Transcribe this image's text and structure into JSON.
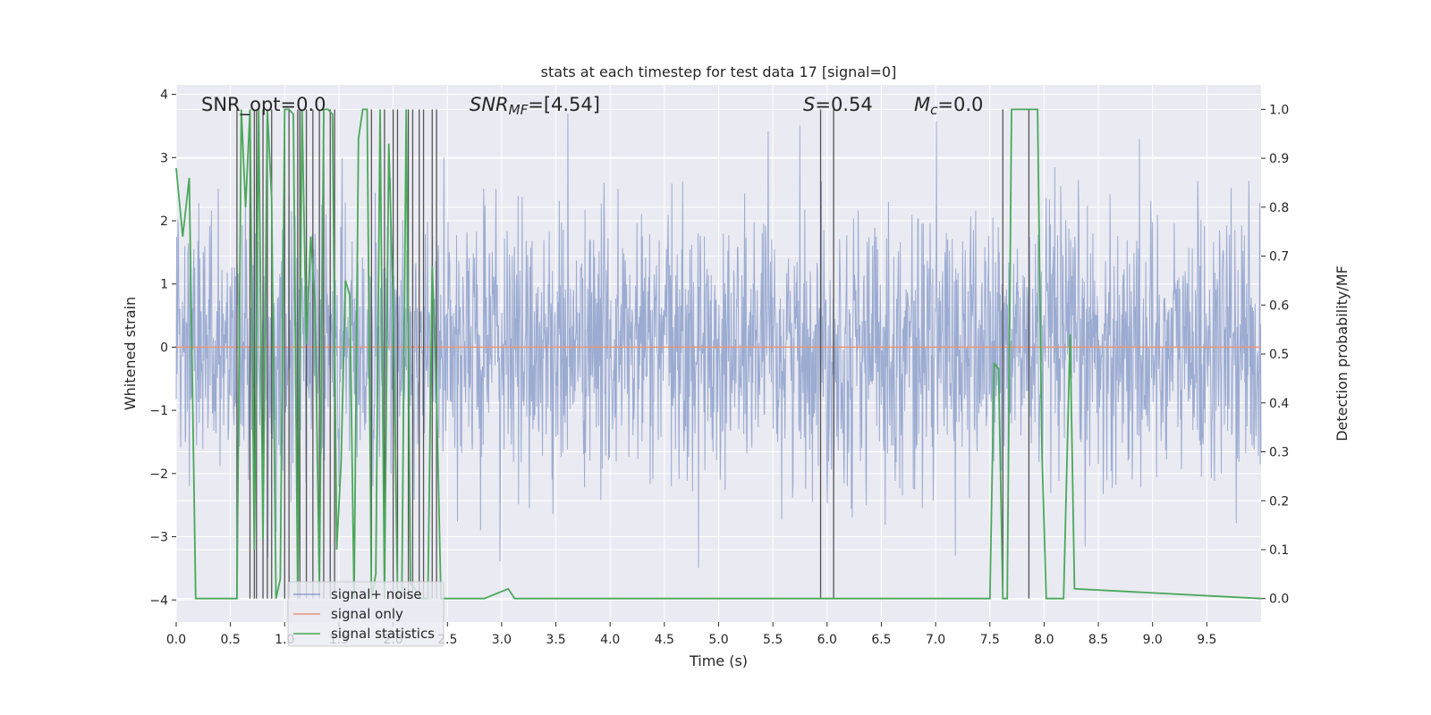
{
  "chart_data": {
    "type": "line",
    "title": "stats at each timestep for test data 17 [signal=0]",
    "xlabel": "Time (s)",
    "ylabel_left": "Whitened strain",
    "ylabel_right": "Detection probability/MF",
    "xlim": [
      0,
      10
    ],
    "ylim_left": [
      -4.35,
      4.15
    ],
    "ylim_right": [
      -0.048,
      1.05
    ],
    "x_ticks": [
      "0.0",
      "0.5",
      "1.0",
      "1.5",
      "2.0",
      "2.5",
      "3.0",
      "3.5",
      "4.0",
      "4.5",
      "5.0",
      "5.5",
      "6.0",
      "6.5",
      "7.0",
      "7.5",
      "8.0",
      "8.5",
      "9.0",
      "9.5"
    ],
    "y_ticks_left": [
      "−4",
      "−3",
      "−2",
      "−1",
      "0",
      "1",
      "2",
      "3",
      "4"
    ],
    "y_ticks_right": [
      "0.0",
      "0.1",
      "0.2",
      "0.3",
      "0.4",
      "0.5",
      "0.6",
      "0.7",
      "0.8",
      "0.9",
      "1.0"
    ],
    "grid": true,
    "legend_placement": "lower-left",
    "annotations": {
      "snr_opt": "SNR_opt=0.0",
      "snr_mf_main": "SNR",
      "snr_mf_sub": "MF",
      "snr_mf_rest": "=[4.54]",
      "s_main": "S",
      "s_rest": "=0.54",
      "mc_main": "M",
      "mc_sub": "c",
      "mc_rest": "=0.0"
    },
    "series": [
      {
        "name": "signal+ noise",
        "color": "#8da0cb",
        "axis": "left",
        "description_of_values": "whitened strain noise, values between about -3.7 and 3.7"
      },
      {
        "name": "signal only",
        "color": "#e89679",
        "axis": "left",
        "x": [
          0,
          10
        ],
        "y": [
          0,
          0
        ]
      },
      {
        "name": "signal statistics",
        "color": "#4aa85a",
        "axis": "right",
        "x": [
          0,
          0.06,
          0.12,
          0.18,
          0.56,
          0.6,
          0.64,
          0.68,
          0.72,
          0.76,
          0.8,
          0.84,
          0.88,
          0.92,
          0.96,
          1.0,
          1.04,
          1.08,
          1.12,
          1.16,
          1.2,
          1.24,
          1.28,
          1.32,
          1.36,
          1.4,
          1.44,
          1.48,
          1.52,
          1.56,
          1.6,
          1.64,
          1.68,
          1.72,
          1.76,
          1.8,
          1.84,
          1.88,
          1.92,
          1.96,
          2.0,
          2.04,
          2.08,
          2.12,
          2.16,
          2.2,
          2.24,
          2.28,
          2.32,
          2.36,
          2.4,
          2.44,
          2.48,
          2.52,
          2.56,
          2.6,
          2.68,
          2.74,
          2.8,
          2.84,
          3.06,
          3.12,
          3.18,
          3.22,
          3.28,
          3.32,
          3.36,
          4.94,
          5.0,
          5.94,
          5.98,
          6.02,
          6.06,
          6.1,
          6.14,
          7.0,
          7.46,
          7.5,
          7.54,
          7.58,
          7.62,
          7.66,
          7.7,
          7.74,
          7.78,
          7.82,
          7.86,
          7.9,
          7.94,
          7.98,
          8.02,
          8.1,
          8.14,
          8.18,
          8.24,
          8.28,
          10.0
        ],
        "y": [
          0.88,
          0.74,
          0.86,
          0.0,
          0.0,
          1.0,
          0.8,
          1.0,
          0.1,
          1.0,
          0.12,
          1.0,
          0.82,
          0.0,
          0.04,
          1.0,
          1.0,
          0.99,
          0.0,
          1.0,
          0.52,
          0.74,
          0.6,
          0.02,
          1.0,
          1.0,
          0.99,
          0.1,
          0.28,
          0.65,
          0.62,
          0.0,
          0.94,
          1.0,
          1.0,
          0.0,
          0.05,
          1.0,
          0.0,
          0.93,
          0.6,
          0.0,
          0.01,
          1.0,
          0.03,
          0.02,
          0.0,
          0.0,
          0.0,
          0.68,
          0.42,
          0.0,
          0.0,
          0.0,
          0.0,
          0.0,
          0.0,
          0.0,
          0.0,
          0.0,
          0.02,
          0.0,
          0.0,
          0.0,
          0.0,
          0.0,
          0.0,
          0.0,
          0.0,
          0.0,
          0.0,
          0.0,
          0.0,
          0.0,
          0.0,
          0.0,
          0.0,
          0.0,
          0.48,
          0.47,
          0.0,
          0.0,
          1.0,
          1.0,
          1.0,
          1.0,
          1.0,
          1.0,
          1.0,
          0.3,
          0.0,
          0.0,
          0.0,
          0.0,
          0.54,
          0.02,
          0.0
        ]
      }
    ],
    "vertical_markers_x": [
      0.56,
      0.68,
      0.72,
      0.74,
      0.8,
      0.84,
      0.88,
      1.0,
      1.04,
      1.12,
      1.14,
      1.2,
      1.26,
      1.32,
      1.36,
      1.42,
      1.46,
      1.8,
      1.92,
      2.0,
      2.04,
      2.14,
      2.18,
      2.24,
      2.28,
      2.36,
      2.4,
      5.94,
      6.06,
      7.62,
      7.86
    ],
    "vertical_marker_color": "#555555"
  }
}
